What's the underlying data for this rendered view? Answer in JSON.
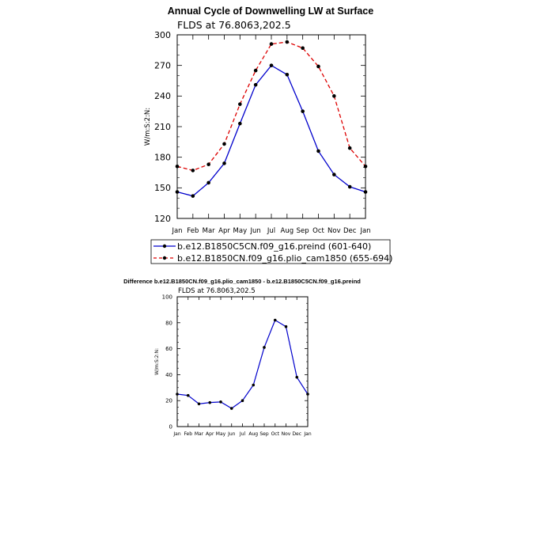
{
  "chart_data": [
    {
      "type": "line",
      "title": "Annual Cycle of Downwelling LW at Surface",
      "subtitle": "FLDS at 76.8063,202.5",
      "ylabel": "W/m:S:2:N:",
      "xlabel": "",
      "ylim": [
        120,
        300
      ],
      "yticks": [
        120,
        150,
        180,
        210,
        240,
        270,
        300
      ],
      "categories": [
        "Jan",
        "Feb",
        "Mar",
        "Apr",
        "May",
        "Jun",
        "Jul",
        "Aug",
        "Sep",
        "Oct",
        "Nov",
        "Dec",
        "Jan"
      ],
      "grid": false,
      "legend_position": "bottom",
      "series": [
        {
          "name": "b.e12.B1850C5CN.f09_g16.preind (601-640)",
          "color": "#0000cc",
          "dash": "solid",
          "values": [
            146,
            142,
            155,
            174,
            213,
            251,
            270,
            261,
            225,
            186,
            163,
            151,
            146
          ]
        },
        {
          "name": "b.e12.B1850CN.f09_g16.plio_cam1850 (655-694)",
          "color": "#dd0000",
          "dash": "dashed",
          "values": [
            171,
            167,
            173,
            193,
            232,
            265,
            291,
            293,
            287,
            269,
            240,
            189,
            171
          ]
        }
      ]
    },
    {
      "type": "line",
      "title": "Difference b.e12.B1850CN.f09_g16.plio_cam1850 - b.e12.B1850C5CN.f09_g16.preind",
      "subtitle": "FLDS at 76.8063,202.5",
      "ylabel": "W/m:S:2:N:",
      "xlabel": "",
      "ylim": [
        0,
        100
      ],
      "yticks": [
        0,
        20,
        40,
        60,
        80,
        100
      ],
      "categories": [
        "Jan",
        "Feb",
        "Mar",
        "Apr",
        "May",
        "Jun",
        "Jul",
        "Aug",
        "Sep",
        "Oct",
        "Nov",
        "Dec",
        "Jan"
      ],
      "grid": false,
      "series": [
        {
          "color": "#0000cc",
          "dash": "solid",
          "values": [
            25,
            24,
            17.5,
            18.5,
            19,
            14,
            20,
            32,
            61,
            82,
            77,
            38,
            25
          ]
        }
      ]
    }
  ]
}
